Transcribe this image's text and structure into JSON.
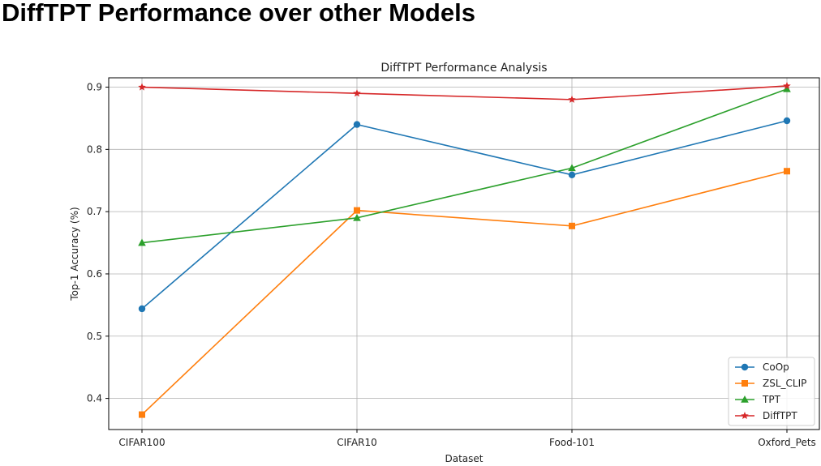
{
  "page": {
    "heading": "DiffTPT Performance over other Models"
  },
  "chart_data": {
    "type": "line",
    "title": "DiffTPT Performance Analysis",
    "xlabel": "Dataset",
    "ylabel": "Top-1 Accuracy (%)",
    "categories": [
      "CIFAR100",
      "CIFAR10",
      "Food-101",
      "Oxford_Pets"
    ],
    "yticks": [
      "0.4",
      "0.5",
      "0.6",
      "0.7",
      "0.8",
      "0.9"
    ],
    "ylim": [
      0.35,
      0.915
    ],
    "grid": true,
    "legend_position": "lower-right",
    "series": [
      {
        "name": "CoOp",
        "values": [
          0.544,
          0.84,
          0.759,
          0.846
        ],
        "color": "#1f77b4",
        "marker": "circle"
      },
      {
        "name": "ZSL_CLIP",
        "values": [
          0.374,
          0.702,
          0.677,
          0.765
        ],
        "color": "#ff7f0e",
        "marker": "square"
      },
      {
        "name": "TPT",
        "values": [
          0.65,
          0.69,
          0.77,
          0.897
        ],
        "color": "#2ca02c",
        "marker": "triangle"
      },
      {
        "name": "DiffTPT",
        "values": [
          0.9,
          0.89,
          0.88,
          0.902
        ],
        "color": "#d62728",
        "marker": "star"
      }
    ]
  }
}
